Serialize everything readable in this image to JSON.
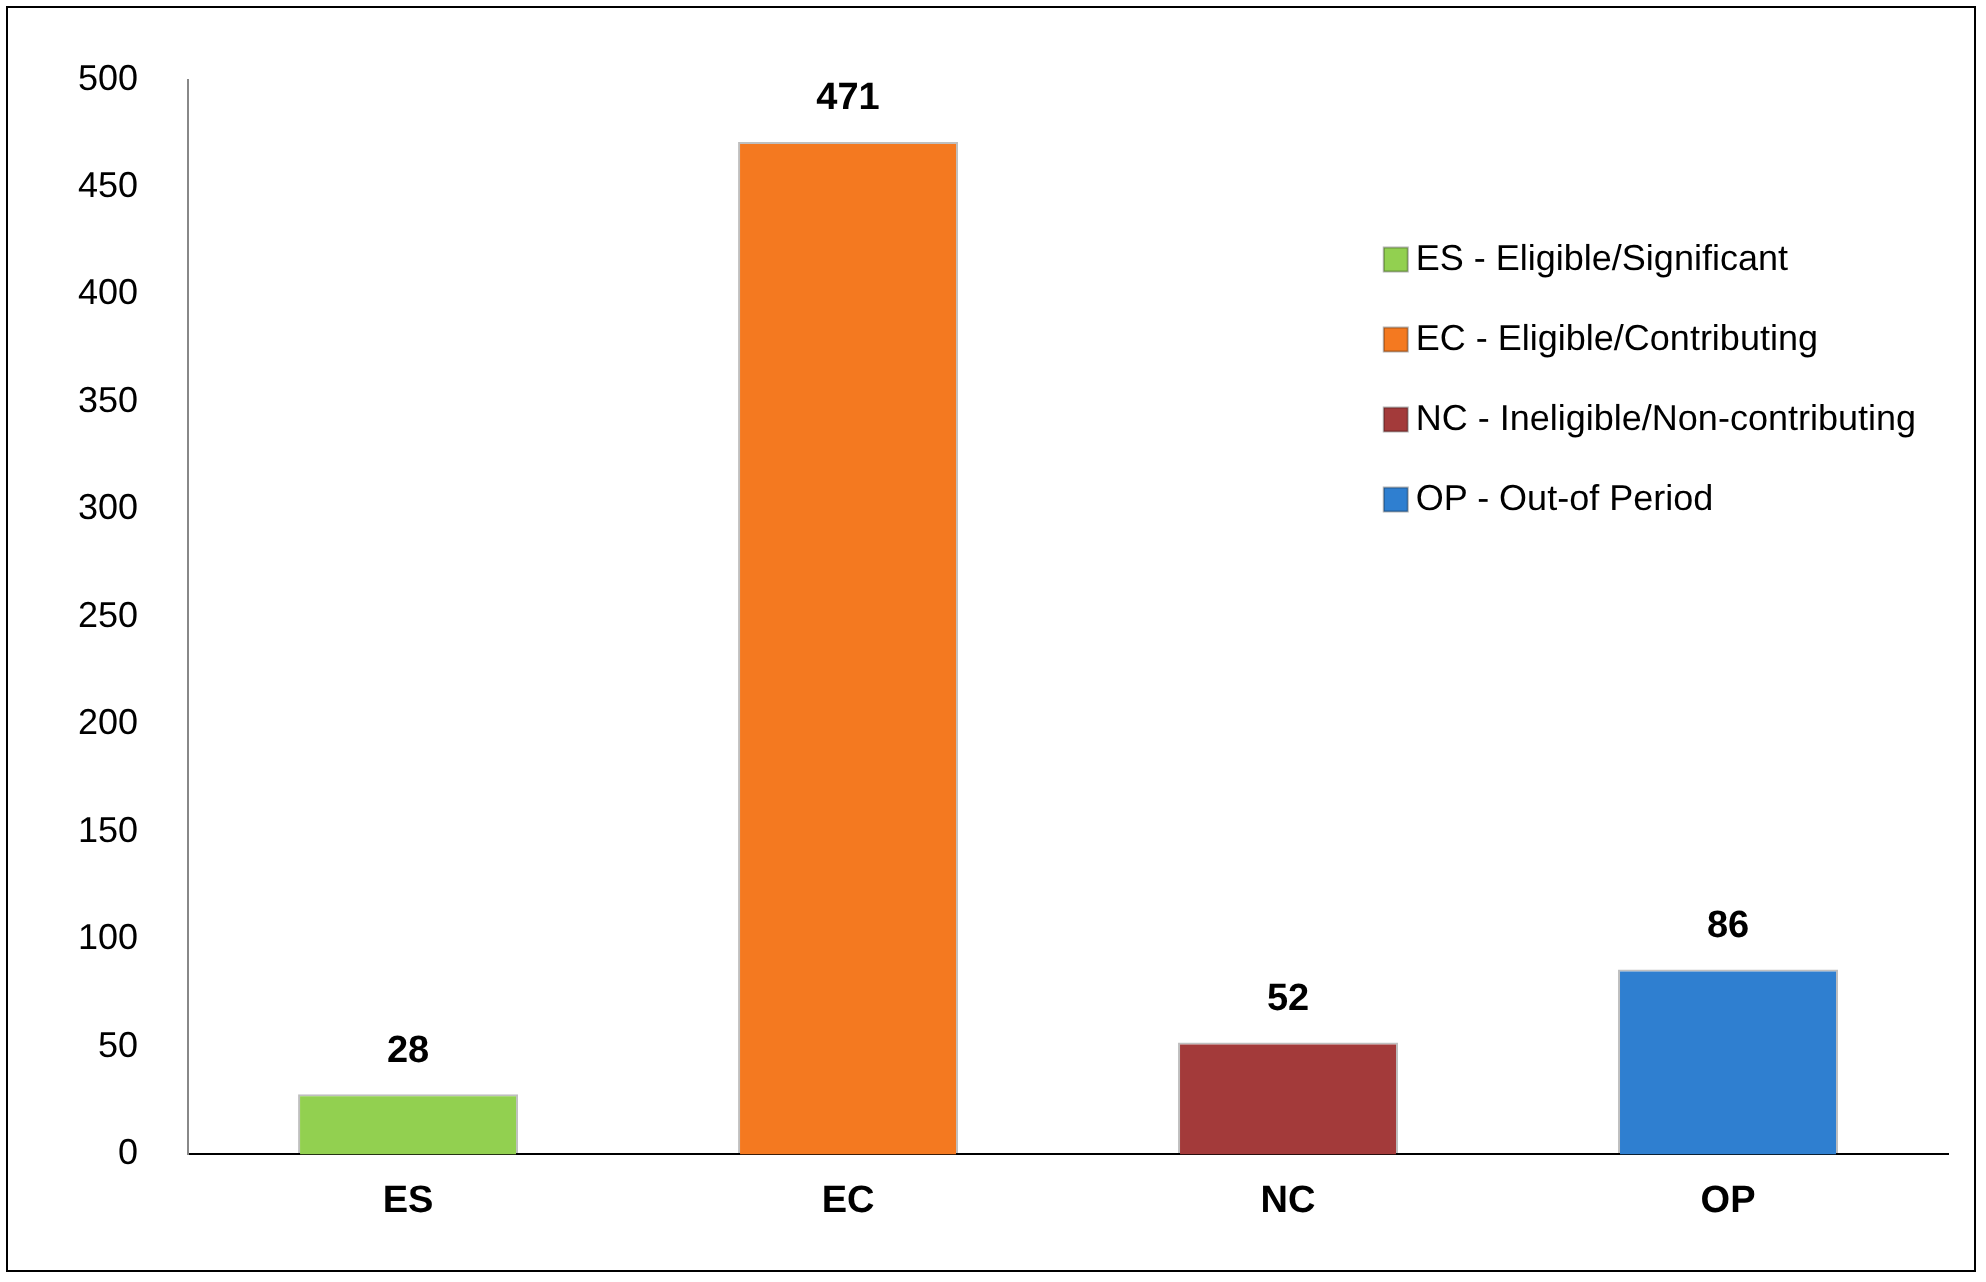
{
  "chart_data": {
    "type": "bar",
    "categories": [
      "ES",
      "EC",
      "NC",
      "OP"
    ],
    "series": [
      {
        "name": "ES - Eligible/Significant",
        "color": "#92d050",
        "values": [
          28,
          null,
          null,
          null
        ]
      },
      {
        "name": "EC - Eligible/Contributing",
        "color": "#f47920",
        "values": [
          null,
          471,
          null,
          null
        ]
      },
      {
        "name": "NC - Ineligible/Non-contributing",
        "color": "#a33a3a",
        "values": [
          null,
          null,
          52,
          null
        ]
      },
      {
        "name": "OP - Out-of Period",
        "color": "#2f7fd0",
        "values": [
          null,
          null,
          null,
          86
        ]
      }
    ],
    "ylim": [
      0,
      500
    ],
    "yticks": [
      0,
      50,
      100,
      150,
      200,
      250,
      300,
      350,
      400,
      450,
      500
    ],
    "grid": false,
    "legend": "top right",
    "data_labels": true
  }
}
